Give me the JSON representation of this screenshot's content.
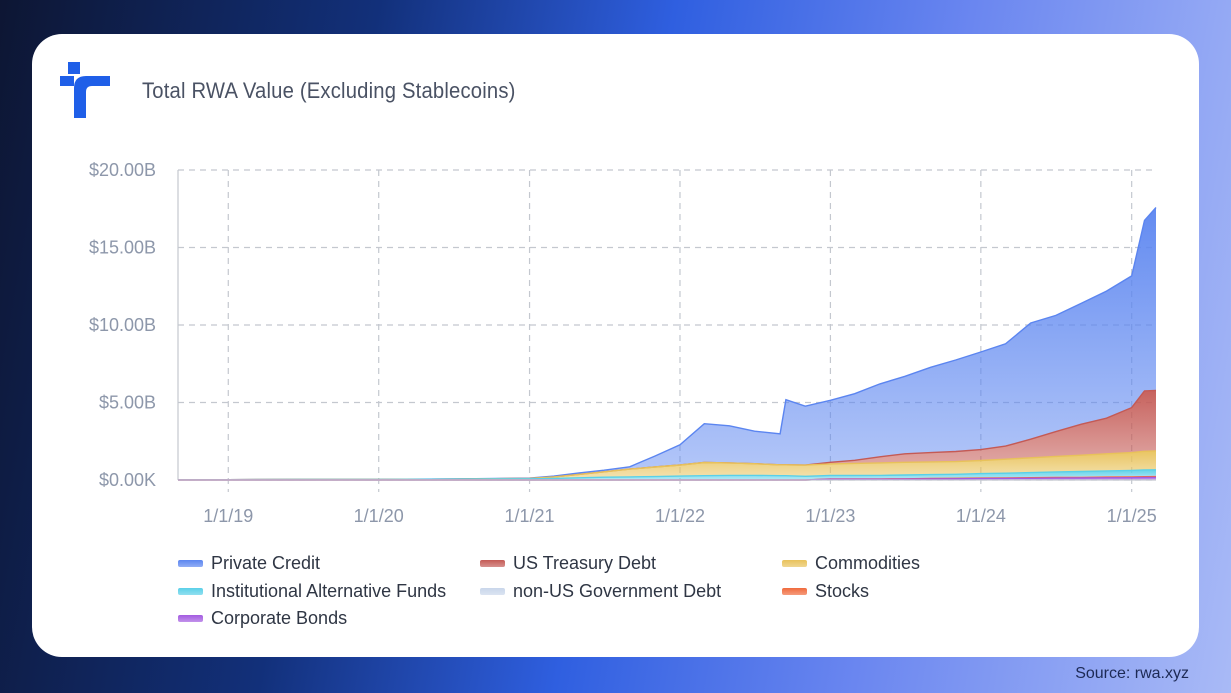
{
  "header": {
    "title": "Total RWA Value (Excluding Stablecoins)"
  },
  "logo": {
    "icon": "rwa-logo-icon",
    "color": "#1f5fe8"
  },
  "source": "Source: rwa.xyz",
  "colors": {
    "Private Credit": "#5b85f0",
    "US Treasury Debt": "#c45a55",
    "Commodities": "#e8c25a",
    "Institutional Alternative Funds": "#5ad0e8",
    "non-US Government Debt": "#c9d6ea",
    "Stocks": "#f06a3c",
    "Corporate Bonds": "#a35be0"
  },
  "chart_data": {
    "type": "area",
    "stacked": true,
    "title": "Total RWA Value (Excluding Stablecoins)",
    "xlabel": "",
    "ylabel": "",
    "x_ticks": [
      "1/1/19",
      "1/1/20",
      "1/1/21",
      "1/1/22",
      "1/1/23",
      "1/1/24",
      "1/1/25"
    ],
    "y_ticks": [
      "$0.00K",
      "$5.00B",
      "$10.00B",
      "$15.00B",
      "$20.00B"
    ],
    "ylim": [
      0,
      20
    ],
    "y_unit": "B USD",
    "grid": true,
    "legend_position": "bottom",
    "x": [
      "2018-09-01",
      "2019-01-01",
      "2019-07-01",
      "2020-01-01",
      "2020-07-01",
      "2021-01-01",
      "2021-03-01",
      "2021-05-01",
      "2021-07-01",
      "2021-09-01",
      "2021-11-01",
      "2022-01-01",
      "2022-03-01",
      "2022-05-01",
      "2022-07-01",
      "2022-09-01",
      "2022-09-15",
      "2022-11-01",
      "2023-01-01",
      "2023-03-01",
      "2023-05-01",
      "2023-07-01",
      "2023-09-01",
      "2023-11-01",
      "2024-01-01",
      "2024-03-01",
      "2024-05-01",
      "2024-07-01",
      "2024-09-01",
      "2024-11-01",
      "2025-01-01",
      "2025-02-01",
      "2025-03-01"
    ],
    "series": [
      {
        "name": "Corporate Bonds",
        "values": [
          0,
          0,
          0,
          0,
          0,
          0,
          0,
          0,
          0,
          0,
          0,
          0,
          0,
          0,
          0,
          0,
          0,
          0,
          0.05,
          0.05,
          0.05,
          0.06,
          0.07,
          0.08,
          0.09,
          0.1,
          0.11,
          0.12,
          0.13,
          0.14,
          0.15,
          0.16,
          0.17
        ]
      },
      {
        "name": "Stocks",
        "values": [
          0,
          0,
          0,
          0,
          0,
          0,
          0,
          0,
          0,
          0,
          0,
          0,
          0,
          0,
          0,
          0,
          0,
          0,
          0.02,
          0.02,
          0.02,
          0.02,
          0.03,
          0.03,
          0.03,
          0.03,
          0.04,
          0.04,
          0.04,
          0.05,
          0.05,
          0.05,
          0.05
        ]
      },
      {
        "name": "non-US Government Debt",
        "values": [
          0,
          0,
          0,
          0,
          0,
          0,
          0,
          0,
          0,
          0,
          0,
          0,
          0,
          0,
          0,
          0,
          0,
          0,
          0,
          0,
          0,
          0,
          0,
          0,
          0.01,
          0.01,
          0.01,
          0.02,
          0.02,
          0.02,
          0.02,
          0.02,
          0.02
        ]
      },
      {
        "name": "Institutional Alternative Funds",
        "values": [
          0.02,
          0.02,
          0.03,
          0.04,
          0.06,
          0.08,
          0.1,
          0.14,
          0.18,
          0.2,
          0.22,
          0.25,
          0.28,
          0.3,
          0.3,
          0.28,
          0.28,
          0.24,
          0.22,
          0.22,
          0.23,
          0.24,
          0.25,
          0.26,
          0.28,
          0.3,
          0.32,
          0.34,
          0.36,
          0.38,
          0.4,
          0.42,
          0.42
        ]
      },
      {
        "name": "Commodities",
        "values": [
          0,
          0,
          0,
          0,
          0,
          0.02,
          0.1,
          0.22,
          0.35,
          0.5,
          0.62,
          0.72,
          0.85,
          0.8,
          0.75,
          0.7,
          0.7,
          0.72,
          0.75,
          0.78,
          0.8,
          0.82,
          0.82,
          0.82,
          0.85,
          0.9,
          0.95,
          1.0,
          1.05,
          1.1,
          1.15,
          1.2,
          1.22
        ]
      },
      {
        "name": "US Treasury Debt",
        "values": [
          0,
          0,
          0,
          0,
          0,
          0,
          0,
          0,
          0,
          0,
          0,
          0,
          0,
          0,
          0,
          0,
          0,
          0,
          0.1,
          0.2,
          0.4,
          0.55,
          0.6,
          0.65,
          0.7,
          0.85,
          1.2,
          1.6,
          2.0,
          2.3,
          2.9,
          3.9,
          3.9
        ]
      },
      {
        "name": "Private Credit",
        "values": [
          0,
          0,
          0,
          0,
          0.01,
          0.02,
          0.05,
          0.1,
          0.1,
          0.15,
          0.7,
          1.3,
          2.5,
          2.4,
          2.1,
          2.0,
          4.2,
          3.8,
          4.0,
          4.3,
          4.7,
          5.0,
          5.5,
          5.9,
          6.3,
          6.6,
          7.5,
          7.5,
          7.8,
          8.2,
          8.5,
          11.0,
          11.8
        ]
      }
    ]
  },
  "legend": {
    "items": [
      {
        "label": "Private Credit",
        "icon": "private-credit-swatch-icon"
      },
      {
        "label": "US Treasury Debt",
        "icon": "us-treasury-debt-swatch-icon"
      },
      {
        "label": "Commodities",
        "icon": "commodities-swatch-icon"
      },
      {
        "label": "Institutional Alternative Funds",
        "icon": "institutional-alternative-funds-swatch-icon"
      },
      {
        "label": "non-US Government Debt",
        "icon": "non-us-government-debt-swatch-icon"
      },
      {
        "label": "Stocks",
        "icon": "stocks-swatch-icon"
      },
      {
        "label": "Corporate Bonds",
        "icon": "corporate-bonds-swatch-icon"
      }
    ]
  }
}
